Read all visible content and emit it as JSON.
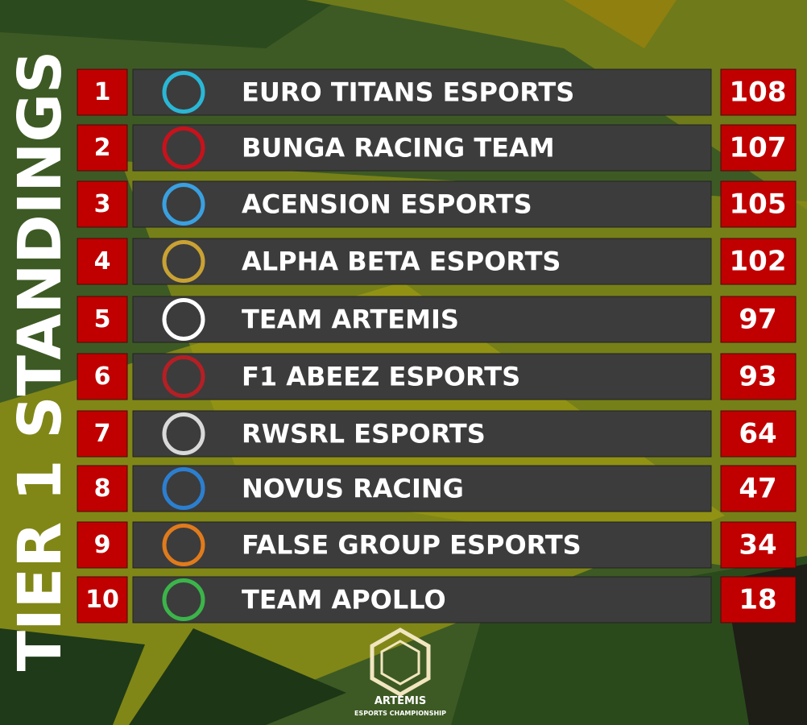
{
  "header": {
    "title": "TIER 1 STANDINGS"
  },
  "table": {
    "rows": [
      {
        "rank": 1,
        "team": "EURO TITANS ESPORTS",
        "points": 108
      },
      {
        "rank": 2,
        "team": "BUNGA RACING TEAM",
        "points": 107
      },
      {
        "rank": 3,
        "team": "ACENSION ESPORTS",
        "points": 105
      },
      {
        "rank": 4,
        "team": "ALPHA BETA ESPORTS",
        "points": 102
      },
      {
        "rank": 5,
        "team": "TEAM ARTEMIS",
        "points": 97
      },
      {
        "rank": 6,
        "team": "F1 ABEEZ ESPORTS",
        "points": 93
      },
      {
        "rank": 7,
        "team": "RWSRL ESPORTS",
        "points": 64
      },
      {
        "rank": 8,
        "team": "NOVUS RACING",
        "points": 47
      },
      {
        "rank": 9,
        "team": "FALSE GROUP ESPORTS",
        "points": 34
      },
      {
        "rank": 10,
        "team": "TEAM APOLLO",
        "points": 18
      }
    ]
  },
  "footer": {
    "brand": "ARTEMIS",
    "subtitle": "ESPORTS CHAMPIONSHIP"
  }
}
